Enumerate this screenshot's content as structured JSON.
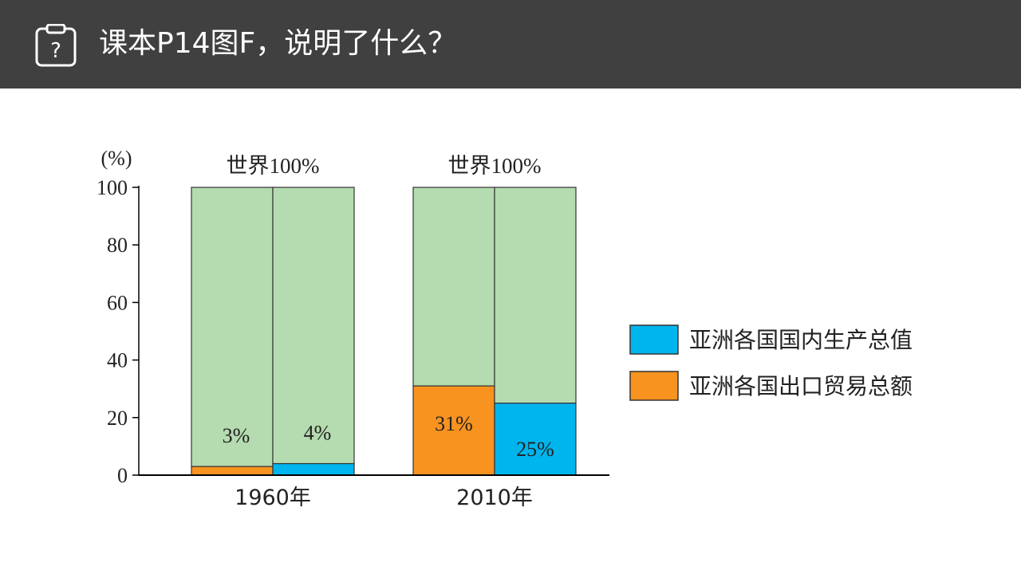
{
  "header": {
    "title": "课本P14图F，说明了什么？",
    "icon": "question-clipboard-icon",
    "background": "#404040"
  },
  "chart_data": {
    "type": "bar",
    "stacked": true,
    "ylabel": "(%)",
    "ylim": [
      0,
      100
    ],
    "yticks": [
      "0",
      "20",
      "40",
      "60",
      "80",
      "100"
    ],
    "group_label": "世界100%",
    "categories": [
      "1960年",
      "2010年"
    ],
    "bars": [
      {
        "category": "1960年",
        "series": "亚洲各国出口贸易总额",
        "value": 3,
        "label": "3%",
        "color": "#f7931e"
      },
      {
        "category": "1960年",
        "series": "亚洲各国国内生产总值",
        "value": 4,
        "label": "4%",
        "color": "#00b5ee"
      },
      {
        "category": "2010年",
        "series": "亚洲各国出口贸易总额",
        "value": 31,
        "label": "31%",
        "color": "#f7931e"
      },
      {
        "category": "2010年",
        "series": "亚洲各国国内生产总值",
        "value": 25,
        "label": "25%",
        "color": "#00b5ee"
      }
    ],
    "remainder_color": "#b5dbb0",
    "legend": [
      {
        "name": "亚洲各国国内生产总值",
        "color": "#00b5ee"
      },
      {
        "name": "亚洲各国出口贸易总额",
        "color": "#f7931e"
      }
    ],
    "legend_position": "right",
    "grid": false
  }
}
